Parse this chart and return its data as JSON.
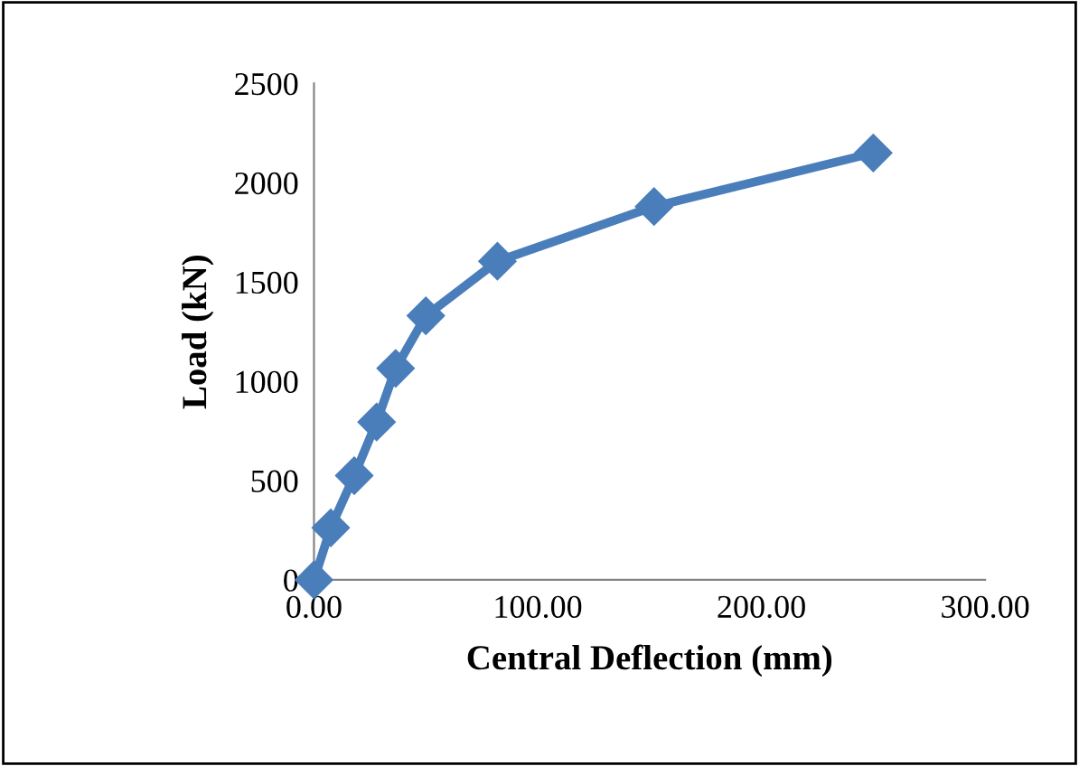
{
  "chart_data": {
    "type": "line",
    "xlabel": "Central Deflection (mm)",
    "ylabel": "Load (kN)",
    "x": [
      0,
      7.5,
      18,
      28,
      36.5,
      50,
      82,
      152,
      250
    ],
    "series": [
      {
        "color": "#4a7ebb",
        "values": [
          0,
          262,
          525,
          795,
          1065,
          1330,
          1605,
          1880,
          2150
        ]
      }
    ],
    "xlim": [
      0,
      300
    ],
    "ylim": [
      0,
      2500
    ],
    "xticks": [
      {
        "value": 0,
        "label": "0.00"
      },
      {
        "value": 100,
        "label": "100.00"
      },
      {
        "value": 200,
        "label": "200.00"
      },
      {
        "value": 300,
        "label": "300.00"
      }
    ],
    "yticks": [
      0,
      500,
      1000,
      1500,
      2000,
      2500
    ],
    "grid": false,
    "marker": "diamond",
    "line_style": "solid"
  }
}
